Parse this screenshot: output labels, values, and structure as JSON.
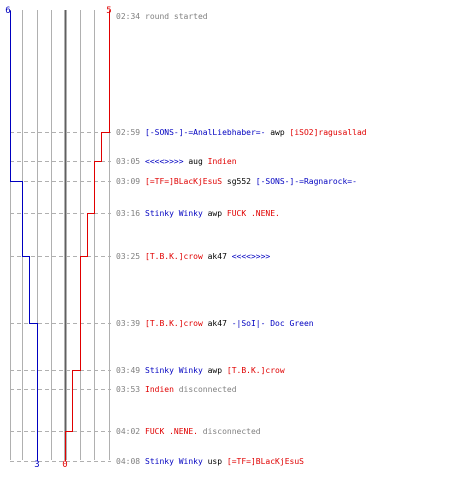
{
  "colors": {
    "blue": "#0000c0",
    "red": "#e00000",
    "grid": "#b0b0b0",
    "center": "#606060",
    "dash": "#b0b0b0",
    "time": "#808080",
    "neutral": "#000000"
  },
  "scores": {
    "blue_start": "6",
    "red_start": "5",
    "blue_end": "3",
    "red_end": "0"
  },
  "events": [
    {
      "time": "02:34",
      "parts": [
        {
          "t": "round started",
          "c": "time"
        }
      ]
    },
    {
      "time": "02:59",
      "parts": [
        {
          "t": "[-SONS-]-=AnalLiebhaber=-",
          "c": "blue"
        },
        {
          "t": " awp ",
          "c": "neutral"
        },
        {
          "t": "[iSO2]ragusallad",
          "c": "red"
        }
      ]
    },
    {
      "time": "03:05",
      "parts": [
        {
          "t": "<<<<>>>>",
          "c": "blue"
        },
        {
          "t": " aug ",
          "c": "neutral"
        },
        {
          "t": "Indien",
          "c": "red"
        }
      ]
    },
    {
      "time": "03:09",
      "parts": [
        {
          "t": "[=TF=]BLacKjEsuS",
          "c": "red"
        },
        {
          "t": " sg552 ",
          "c": "neutral"
        },
        {
          "t": "[-SONS-]-=Ragnarock=-",
          "c": "blue"
        }
      ]
    },
    {
      "time": "03:16",
      "parts": [
        {
          "t": "Stinky Winky",
          "c": "blue"
        },
        {
          "t": " awp ",
          "c": "neutral"
        },
        {
          "t": "FUCK .NENE.",
          "c": "red"
        }
      ]
    },
    {
      "time": "03:25",
      "parts": [
        {
          "t": "[T.B.K.]crow",
          "c": "red"
        },
        {
          "t": " ak47 ",
          "c": "neutral"
        },
        {
          "t": "<<<<>>>>",
          "c": "blue"
        }
      ]
    },
    {
      "time": "03:39",
      "parts": [
        {
          "t": "[T.B.K.]crow",
          "c": "red"
        },
        {
          "t": " ak47 ",
          "c": "neutral"
        },
        {
          "t": "-|SoI|- Doc Green",
          "c": "blue"
        }
      ]
    },
    {
      "time": "03:49",
      "parts": [
        {
          "t": "Stinky Winky",
          "c": "blue"
        },
        {
          "t": " awp ",
          "c": "neutral"
        },
        {
          "t": "[T.B.K.]crow",
          "c": "red"
        }
      ]
    },
    {
      "time": "03:53",
      "parts": [
        {
          "t": "Indien",
          "c": "red"
        },
        {
          "t": " disconnected",
          "c": "time"
        }
      ]
    },
    {
      "time": "04:02",
      "parts": [
        {
          "t": "FUCK .NENE.",
          "c": "red"
        },
        {
          "t": " disconnected",
          "c": "time"
        }
      ]
    },
    {
      "time": "04:08",
      "parts": [
        {
          "t": "Stinky Winky",
          "c": "blue"
        },
        {
          "t": " usp ",
          "c": "neutral"
        },
        {
          "t": "[=TF=]BLacKjEsuS",
          "c": "red"
        }
      ]
    }
  ]
}
